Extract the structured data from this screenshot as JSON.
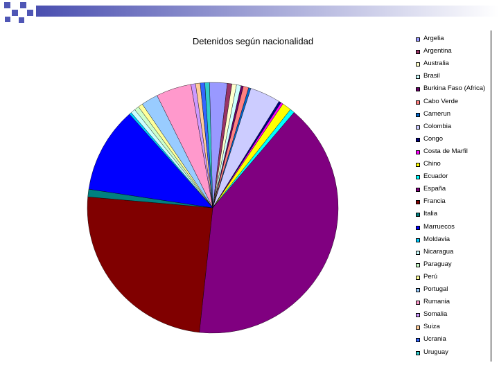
{
  "decoration": {
    "squares_color": "#4f56b5",
    "bar_gradient_start": "#4a4fb0",
    "bar_gradient_end": "#ffffff"
  },
  "chart_data": {
    "type": "pie",
    "title": "Detenidos según nacionalidad",
    "legend_position": "right",
    "start_angle_deg": -1.5,
    "direction": "clockwise",
    "series": [
      {
        "name": "Argelia",
        "value": 2.3,
        "color": "#9999ff"
      },
      {
        "name": "Argentina",
        "value": 0.6,
        "color": "#993366"
      },
      {
        "name": "Australia",
        "value": 0.6,
        "color": "#ffffcc"
      },
      {
        "name": "Brasil",
        "value": 0.6,
        "color": "#ccffff"
      },
      {
        "name": "Burkina Faso (Africa)",
        "value": 0.3,
        "color": "#660066"
      },
      {
        "name": "Cabo Verde",
        "value": 0.7,
        "color": "#ff8080"
      },
      {
        "name": "Camerun",
        "value": 0.3,
        "color": "#0066cc"
      },
      {
        "name": "Colombia",
        "value": 4.0,
        "color": "#ccccff"
      },
      {
        "name": "Congo",
        "value": 0.3,
        "color": "#000080"
      },
      {
        "name": "Costa de Marfil",
        "value": 0.3,
        "color": "#ff00ff"
      },
      {
        "name": "Chino",
        "value": 1.2,
        "color": "#ffff00"
      },
      {
        "name": "Ecuador",
        "value": 0.6,
        "color": "#00ffff"
      },
      {
        "name": "España",
        "value": 41.0,
        "color": "#800080"
      },
      {
        "name": "Francia",
        "value": 25.0,
        "color": "#800000"
      },
      {
        "name": "Italia",
        "value": 1.0,
        "color": "#008080"
      },
      {
        "name": "Marruecos",
        "value": 11.2,
        "color": "#0000ff"
      },
      {
        "name": "Moldavia",
        "value": 0.3,
        "color": "#00ccff"
      },
      {
        "name": "Nicaragua",
        "value": 0.6,
        "color": "#ccffff"
      },
      {
        "name": "Paraguay",
        "value": 0.6,
        "color": "#ccffcc"
      },
      {
        "name": "Perú",
        "value": 0.6,
        "color": "#ffff99"
      },
      {
        "name": "Portugal",
        "value": 2.2,
        "color": "#99ccff"
      },
      {
        "name": "Rumania",
        "value": 4.6,
        "color": "#ff99cc"
      },
      {
        "name": "Somalia",
        "value": 0.6,
        "color": "#cc99ff"
      },
      {
        "name": "Suiza",
        "value": 0.6,
        "color": "#ffcc99"
      },
      {
        "name": "Ucrania",
        "value": 0.6,
        "color": "#3366ff"
      },
      {
        "name": "Uruguay",
        "value": 0.6,
        "color": "#33cccc"
      }
    ]
  }
}
